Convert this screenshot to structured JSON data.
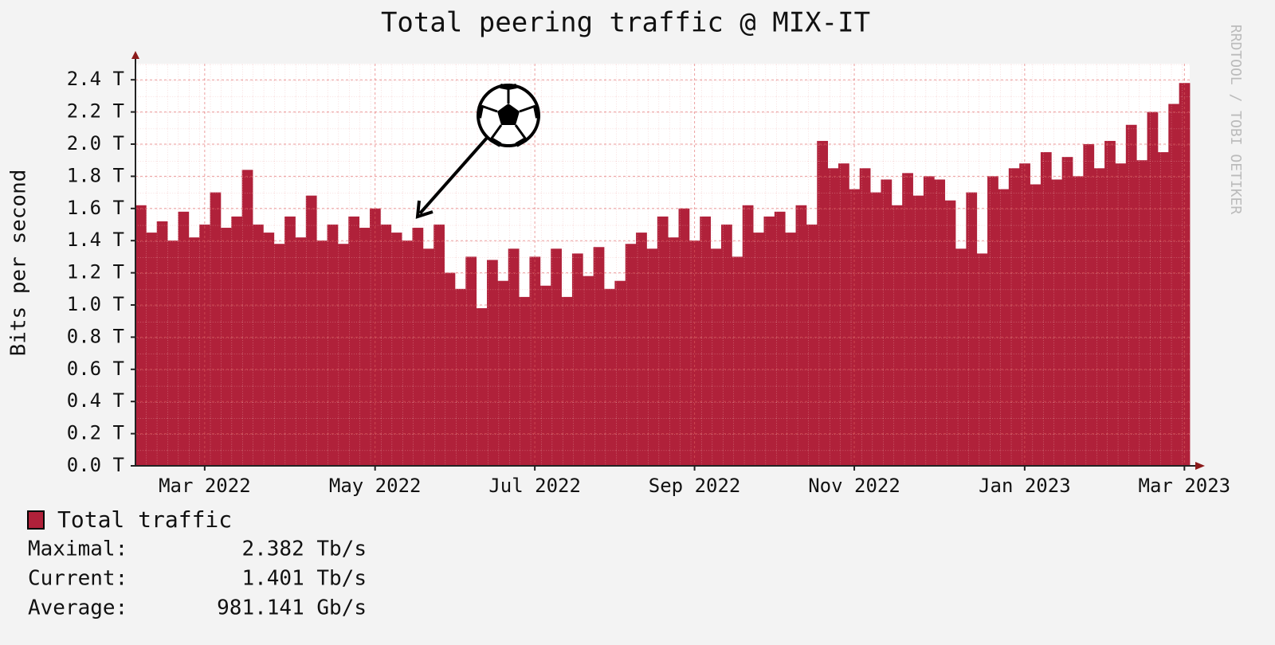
{
  "chart_data": {
    "type": "bar",
    "title": "Total peering traffic @ MIX-IT",
    "y_label": "Bits per second",
    "watermark": "RRDTOOL / TOBI OETIKER",
    "categories": [
      null,
      null,
      null,
      null,
      null,
      null,
      "Mar 2022",
      null,
      null,
      null,
      null,
      null,
      null,
      null,
      null,
      null,
      null,
      null,
      null,
      null,
      null,
      null,
      "May 2022",
      null,
      null,
      null,
      null,
      null,
      null,
      null,
      null,
      null,
      null,
      null,
      null,
      null,
      null,
      "Jul 2022",
      null,
      null,
      null,
      null,
      null,
      null,
      null,
      null,
      null,
      null,
      null,
      null,
      null,
      null,
      "Sep 2022",
      null,
      null,
      null,
      null,
      null,
      null,
      null,
      null,
      null,
      null,
      null,
      null,
      null,
      null,
      "Nov 2022",
      null,
      null,
      null,
      null,
      null,
      null,
      null,
      null,
      null,
      null,
      null,
      null,
      null,
      null,
      null,
      "Jan 2023",
      null,
      null,
      null,
      null,
      null,
      null,
      null,
      null,
      null,
      null,
      null,
      null,
      null,
      null,
      "Mar 2023"
    ],
    "series": [
      {
        "name": "Total traffic",
        "color": "#b0213a",
        "values": [
          1.62,
          1.45,
          1.52,
          1.4,
          1.58,
          1.42,
          1.5,
          1.7,
          1.48,
          1.55,
          1.84,
          1.5,
          1.45,
          1.38,
          1.55,
          1.42,
          1.68,
          1.4,
          1.5,
          1.38,
          1.55,
          1.48,
          1.6,
          1.5,
          1.45,
          1.4,
          1.48,
          1.35,
          1.5,
          1.2,
          1.1,
          1.3,
          0.98,
          1.28,
          1.15,
          1.35,
          1.05,
          1.3,
          1.12,
          1.35,
          1.05,
          1.32,
          1.18,
          1.36,
          1.1,
          1.15,
          1.38,
          1.45,
          1.35,
          1.55,
          1.42,
          1.6,
          1.4,
          1.55,
          1.35,
          1.5,
          1.3,
          1.62,
          1.45,
          1.55,
          1.58,
          1.45,
          1.62,
          1.5,
          2.02,
          1.85,
          1.88,
          1.72,
          1.85,
          1.7,
          1.78,
          1.62,
          1.82,
          1.68,
          1.8,
          1.78,
          1.65,
          1.35,
          1.7,
          1.32,
          1.8,
          1.72,
          1.85,
          1.88,
          1.75,
          1.95,
          1.78,
          1.92,
          1.8,
          2.0,
          1.85,
          2.02,
          1.88,
          2.12,
          1.9,
          2.2,
          1.95,
          2.25,
          2.38
        ]
      }
    ],
    "ylim": [
      0,
      2.5
    ],
    "yticks": [
      {
        "value": 0,
        "label": "0.0 T"
      },
      {
        "value": 0.2,
        "label": "0.2 T"
      },
      {
        "value": 0.4,
        "label": "0.4 T"
      },
      {
        "value": 0.6,
        "label": "0.6 T"
      },
      {
        "value": 0.8,
        "label": "0.8 T"
      },
      {
        "value": 1.0,
        "label": "1.0 T"
      },
      {
        "value": 1.2,
        "label": "1.2 T"
      },
      {
        "value": 1.4,
        "label": "1.4 T"
      },
      {
        "value": 1.6,
        "label": "1.6 T"
      },
      {
        "value": 1.8,
        "label": "1.8 T"
      },
      {
        "value": 2.0,
        "label": "2.0 T"
      },
      {
        "value": 2.2,
        "label": "2.2 T"
      },
      {
        "value": 2.4,
        "label": "2.4 T"
      }
    ],
    "grid": true,
    "stats": [
      {
        "label": "Maximal:",
        "value": "2.382 Tb/s"
      },
      {
        "label": "Current:",
        "value": "1.401 Tb/s"
      },
      {
        "label": "Average:",
        "value": "981.141 Gb/s"
      }
    ]
  }
}
